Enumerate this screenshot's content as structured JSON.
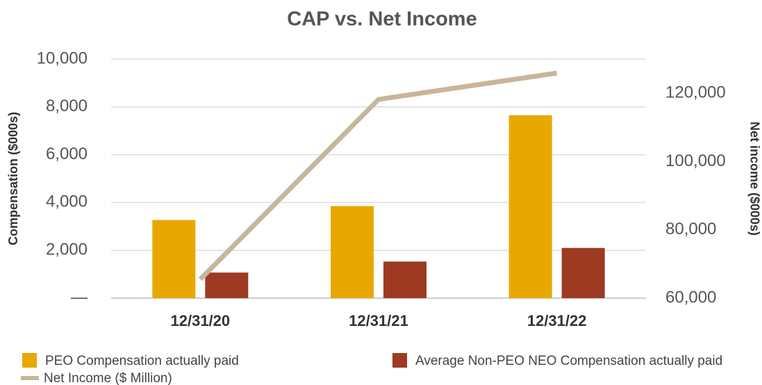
{
  "chart_data": {
    "type": "bar",
    "title": "CAP  vs. Net Income",
    "y_label": "Compensation ($000s)",
    "y2_label": "Net income ($000s)",
    "categories": [
      "12/31/20",
      "12/31/21",
      "12/31/22"
    ],
    "series": [
      {
        "name": "PEO Compensation actually paid",
        "type": "bar",
        "color": "#e8a800",
        "values": [
          3270,
          3850,
          7650
        ]
      },
      {
        "name": "Average Non-PEO NEO Compensation actually paid",
        "type": "bar",
        "color": "#9e3a22",
        "values": [
          1070,
          1530,
          2100
        ]
      },
      {
        "name": "Net Income  ($ Million)",
        "type": "line",
        "axis": "y2",
        "color": "#c8b59a",
        "values": [
          65500,
          118200,
          125900
        ]
      }
    ],
    "ylim": [
      0,
      10000
    ],
    "yticks": [
      {
        "value": 0,
        "label": "—"
      },
      {
        "value": 2000,
        "label": "2,000"
      },
      {
        "value": 4000,
        "label": "4,000"
      },
      {
        "value": 6000,
        "label": "6,000"
      },
      {
        "value": 8000,
        "label": "8,000"
      },
      {
        "value": 10000,
        "label": "10,000"
      }
    ],
    "y2lim": [
      60000,
      130000
    ],
    "y2ticks": [
      {
        "value": 60000,
        "label": "60,000"
      },
      {
        "value": 80000,
        "label": "80,000"
      },
      {
        "value": 100000,
        "label": "100,000"
      },
      {
        "value": 120000,
        "label": "120,000"
      }
    ],
    "grid": true
  }
}
